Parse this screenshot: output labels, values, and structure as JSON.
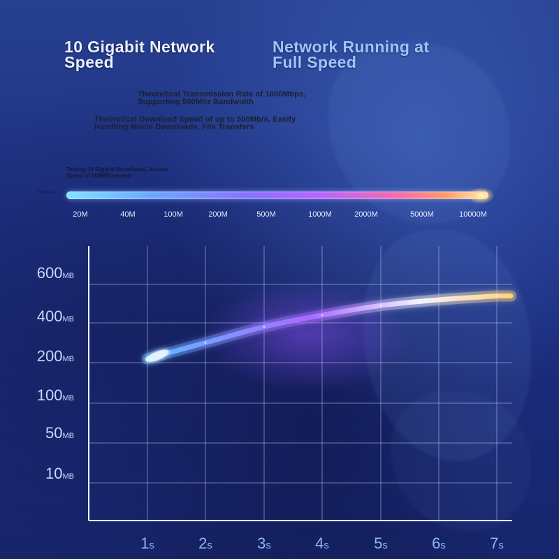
{
  "headline": {
    "left": "10 Gigabit Network Speed",
    "right": "Network Running at Full Speed"
  },
  "descriptions": [
    "Theoretical Transmission Rate of 1000Mbps, Supporting 500Mhz Bandwidth",
    "Theoretical Download Speed of up to 500Mb/s, Easily Handling Movie Downloads, File Transfers"
  ],
  "test_note": "Testing 10 Gigabit Broadband, Access Speed of 500MB/second",
  "broadband_label": "Broadband",
  "speed_scale": [
    "20M",
    "40M",
    "100M",
    "200M",
    "500M",
    "1000M",
    "2000M",
    "5000M",
    "10000M"
  ],
  "colors": {
    "curve_start": "#5fb8ff",
    "curve_mid": "#a86bff",
    "curve_end": "#ffd27a",
    "grid": "#b9c8ee",
    "axis": "#f2f5ff"
  },
  "chart_data": {
    "type": "line",
    "title": "",
    "xlabel": "",
    "ylabel": "",
    "x_tick_labels": [
      {
        "num": "1",
        "unit": "s"
      },
      {
        "num": "2",
        "unit": "s"
      },
      {
        "num": "3",
        "unit": "s"
      },
      {
        "num": "4",
        "unit": "s"
      },
      {
        "num": "5",
        "unit": "s"
      },
      {
        "num": "6",
        "unit": "s"
      },
      {
        "num": "7",
        "unit": "s"
      }
    ],
    "y_tick_labels": [
      {
        "num": "600",
        "unit": "MB"
      },
      {
        "num": "400",
        "unit": "MB"
      },
      {
        "num": "200",
        "unit": "MB"
      },
      {
        "num": "100",
        "unit": "MB"
      },
      {
        "num": "50",
        "unit": "MB"
      },
      {
        "num": "10",
        "unit": "MB"
      }
    ],
    "y_scale": "categorical-ticks",
    "grid": true,
    "series": [
      {
        "x": [
          1,
          2,
          3,
          4,
          5,
          6,
          7
        ],
        "y": [
          220,
          300,
          380,
          440,
          490,
          520,
          540
        ]
      }
    ]
  }
}
